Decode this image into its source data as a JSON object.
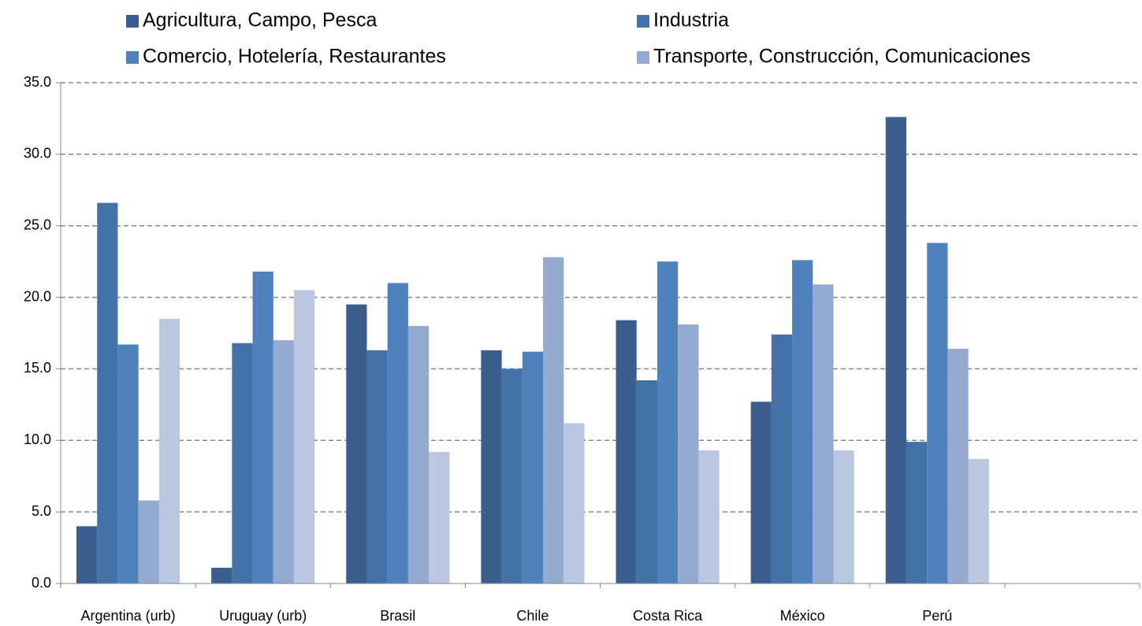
{
  "chart_data": {
    "type": "bar",
    "categories": [
      "Argentina (urb)",
      "Uruguay (urb)",
      "Brasil",
      "Chile",
      "Costa Rica",
      "México",
      "Perú",
      null
    ],
    "series": [
      {
        "name": "Agricultura, Campo, Pesca",
        "color": "#3a5f8e",
        "values": [
          4.0,
          1.1,
          19.5,
          16.3,
          18.4,
          12.7,
          32.6,
          null
        ]
      },
      {
        "name": "Industria",
        "color": "#4472a8",
        "values": [
          26.6,
          16.8,
          16.3,
          15.0,
          14.2,
          17.4,
          9.9,
          null
        ]
      },
      {
        "name": "Comercio, Hotelería, Restaurantes",
        "color": "#4f81bd",
        "values": [
          16.7,
          21.8,
          21.0,
          16.2,
          22.5,
          22.6,
          23.8,
          null
        ]
      },
      {
        "name": "Transporte, Construcción, Comunicaciones",
        "color": "#95aad0",
        "values": [
          5.8,
          17.0,
          18.0,
          22.8,
          18.1,
          20.9,
          16.4,
          null
        ]
      },
      {
        "name": null,
        "color": "#b9c7e0",
        "values": [
          18.5,
          20.5,
          9.2,
          11.2,
          9.3,
          9.3,
          8.7,
          null
        ]
      }
    ],
    "ylim": [
      0,
      35
    ],
    "yticks": [
      {
        "value": 0,
        "label": "0.0"
      },
      {
        "value": 5,
        "label": "5.0"
      },
      {
        "value": 10,
        "label": "10.0"
      },
      {
        "value": 15,
        "label": "15.0"
      },
      {
        "value": 20,
        "label": "20.0"
      },
      {
        "value": 25,
        "label": "25.0"
      },
      {
        "value": 30,
        "label": "30.0"
      },
      {
        "value": 35,
        "label": "35.0"
      }
    ],
    "grid": true
  }
}
